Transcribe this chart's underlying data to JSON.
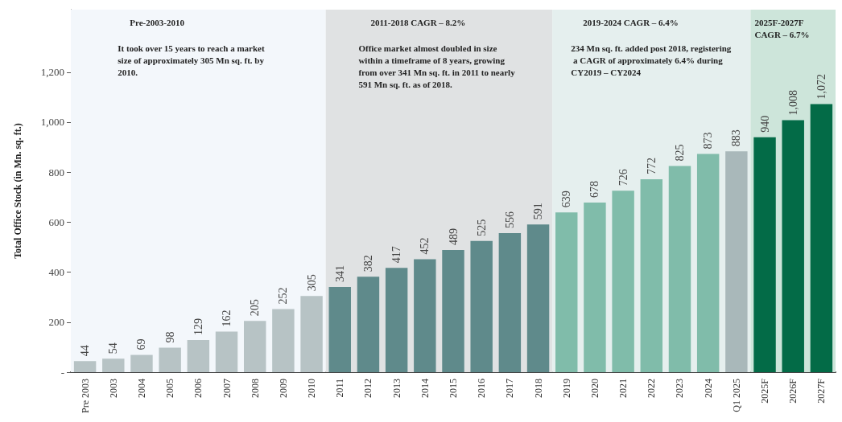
{
  "chart_data": {
    "type": "bar",
    "ylabel": "Total Office Stock (in Mn. sq. ft.)",
    "categories": [
      "Pre 2003",
      "2003",
      "2004",
      "2005",
      "2006",
      "2007",
      "2008",
      "2009",
      "2010",
      "2011",
      "2012",
      "2013",
      "2014",
      "2015",
      "2016",
      "2017",
      "2018",
      "2019",
      "2020",
      "2021",
      "2022",
      "2023",
      "2024",
      "Q1 2025",
      "2025F",
      "2026F",
      "2027F"
    ],
    "values": [
      44,
      54,
      69,
      98,
      129,
      162,
      205,
      252,
      305,
      341,
      382,
      417,
      452,
      489,
      525,
      556,
      591,
      639,
      678,
      726,
      772,
      825,
      873,
      883,
      940,
      1008,
      1072
    ],
    "value_labels": [
      "44",
      "54",
      "69",
      "98",
      "129",
      "162",
      "205",
      "252",
      "305",
      "341",
      "382",
      "417",
      "452",
      "489",
      "525",
      "556",
      "591",
      "639",
      "678",
      "726",
      "772",
      "825",
      "873",
      "883",
      "940",
      "1,008",
      "1,072"
    ],
    "colors": [
      "#b7c3c5",
      "#b7c3c5",
      "#b7c3c5",
      "#b7c3c5",
      "#b7c3c5",
      "#b7c3c5",
      "#b7c3c5",
      "#b7c3c5",
      "#b7c3c5",
      "#5f8a8b",
      "#5f8a8b",
      "#5f8a8b",
      "#5f8a8b",
      "#5f8a8b",
      "#5f8a8b",
      "#5f8a8b",
      "#5f8a8b",
      "#80bcaa",
      "#80bcaa",
      "#80bcaa",
      "#80bcaa",
      "#80bcaa",
      "#80bcaa",
      "#a9b8ba",
      "#036b47",
      "#036b47",
      "#036b47"
    ],
    "ylim": [
      0,
      1450
    ],
    "yticks": [
      {
        "value": 0,
        "label": "-"
      },
      200,
      400,
      600,
      800,
      {
        "value": 1000,
        "label": "1,000"
      },
      {
        "value": 1200,
        "label": "1,200"
      }
    ],
    "bands": [
      {
        "axis": "x",
        "from": "Pre 2003",
        "to": "2010",
        "label": "Pre-2003-2010",
        "color": "#f3f7fb"
      },
      {
        "axis": "x",
        "from": "2011",
        "to": "2018",
        "label": "2011-2018 CAGR – 8.2%",
        "color": "#e0e2e3"
      },
      {
        "axis": "x",
        "from": "2019",
        "to": "Q1 2025",
        "label": "2019-2024 CAGR – 6.4%",
        "color": "#e5efee"
      },
      {
        "axis": "x",
        "from": "2025F",
        "to": "2027F",
        "label": "2025F-2027F CAGR – 6.7%",
        "color": "#cde5da"
      }
    ],
    "annotations": [
      "It took over 15 years to reach a market size of approximately 305 Mn sq. ft. by 2010.",
      "Office market almost doubled in size within a timeframe of 8 years, growing from over 341 Mn sq. ft. in 2011 to nearly 591 Mn sq. ft. as of 2018.",
      "234 Mn sq. ft. added post 2018, registering a CAGR of approximately 6.4% during CY2019 – CY2024"
    ],
    "grid": false
  }
}
